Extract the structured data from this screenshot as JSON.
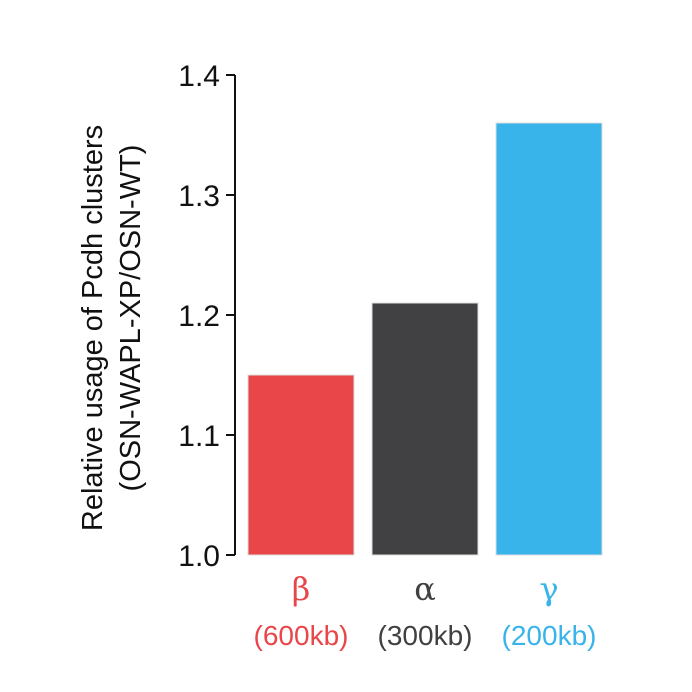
{
  "chart_data": {
    "type": "bar",
    "categories": [
      "β",
      "α",
      "γ"
    ],
    "category_sublabels": [
      "(600kb)",
      "(300kb)",
      "(200kb)"
    ],
    "values": [
      1.15,
      1.21,
      1.36
    ],
    "colors": [
      "#e9464a",
      "#414042",
      "#39b4eb"
    ],
    "title": "",
    "xlabel": "",
    "ylabel_lines": [
      "Relative usage of Pcdh clusters",
      "(OSN-WAPL-XP/OSN-WT)"
    ],
    "ylim": [
      1.0,
      1.4
    ],
    "yticks": [
      "1.0",
      "1.1",
      "1.2",
      "1.3",
      "1.4"
    ],
    "grid": false,
    "legend": "none"
  }
}
